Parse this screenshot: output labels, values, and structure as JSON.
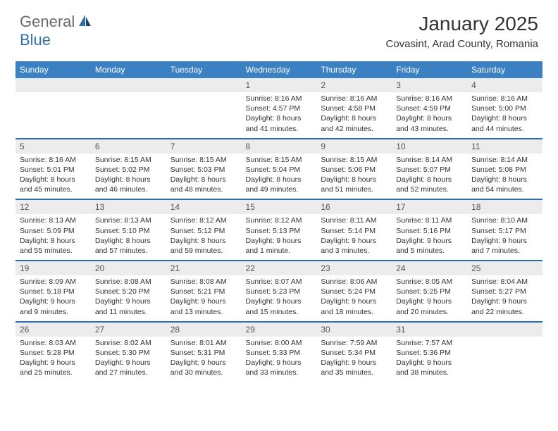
{
  "logo": {
    "general": "General",
    "blue": "Blue"
  },
  "title": "January 2025",
  "location": "Covasint, Arad County, Romania",
  "colors": {
    "header_bg": "#3a80c3",
    "header_text": "#ffffff",
    "row_sep": "#2f6fa8",
    "daynum_bg": "#ececec",
    "body_text": "#333333",
    "logo_gray": "#6a6a6a",
    "logo_blue": "#2f6fa8"
  },
  "fonts": {
    "title_pt": 28,
    "location_pt": 15,
    "dow_pt": 12,
    "daynum_pt": 12,
    "detail_pt": 10.5
  },
  "days_of_week": [
    "Sunday",
    "Monday",
    "Tuesday",
    "Wednesday",
    "Thursday",
    "Friday",
    "Saturday"
  ],
  "weeks": [
    [
      {
        "n": "",
        "sr": "",
        "ss": "",
        "d1": "",
        "d2": ""
      },
      {
        "n": "",
        "sr": "",
        "ss": "",
        "d1": "",
        "d2": ""
      },
      {
        "n": "",
        "sr": "",
        "ss": "",
        "d1": "",
        "d2": ""
      },
      {
        "n": "1",
        "sr": "Sunrise: 8:16 AM",
        "ss": "Sunset: 4:57 PM",
        "d1": "Daylight: 8 hours",
        "d2": "and 41 minutes."
      },
      {
        "n": "2",
        "sr": "Sunrise: 8:16 AM",
        "ss": "Sunset: 4:58 PM",
        "d1": "Daylight: 8 hours",
        "d2": "and 42 minutes."
      },
      {
        "n": "3",
        "sr": "Sunrise: 8:16 AM",
        "ss": "Sunset: 4:59 PM",
        "d1": "Daylight: 8 hours",
        "d2": "and 43 minutes."
      },
      {
        "n": "4",
        "sr": "Sunrise: 8:16 AM",
        "ss": "Sunset: 5:00 PM",
        "d1": "Daylight: 8 hours",
        "d2": "and 44 minutes."
      }
    ],
    [
      {
        "n": "5",
        "sr": "Sunrise: 8:16 AM",
        "ss": "Sunset: 5:01 PM",
        "d1": "Daylight: 8 hours",
        "d2": "and 45 minutes."
      },
      {
        "n": "6",
        "sr": "Sunrise: 8:15 AM",
        "ss": "Sunset: 5:02 PM",
        "d1": "Daylight: 8 hours",
        "d2": "and 46 minutes."
      },
      {
        "n": "7",
        "sr": "Sunrise: 8:15 AM",
        "ss": "Sunset: 5:03 PM",
        "d1": "Daylight: 8 hours",
        "d2": "and 48 minutes."
      },
      {
        "n": "8",
        "sr": "Sunrise: 8:15 AM",
        "ss": "Sunset: 5:04 PM",
        "d1": "Daylight: 8 hours",
        "d2": "and 49 minutes."
      },
      {
        "n": "9",
        "sr": "Sunrise: 8:15 AM",
        "ss": "Sunset: 5:06 PM",
        "d1": "Daylight: 8 hours",
        "d2": "and 51 minutes."
      },
      {
        "n": "10",
        "sr": "Sunrise: 8:14 AM",
        "ss": "Sunset: 5:07 PM",
        "d1": "Daylight: 8 hours",
        "d2": "and 52 minutes."
      },
      {
        "n": "11",
        "sr": "Sunrise: 8:14 AM",
        "ss": "Sunset: 5:08 PM",
        "d1": "Daylight: 8 hours",
        "d2": "and 54 minutes."
      }
    ],
    [
      {
        "n": "12",
        "sr": "Sunrise: 8:13 AM",
        "ss": "Sunset: 5:09 PM",
        "d1": "Daylight: 8 hours",
        "d2": "and 55 minutes."
      },
      {
        "n": "13",
        "sr": "Sunrise: 8:13 AM",
        "ss": "Sunset: 5:10 PM",
        "d1": "Daylight: 8 hours",
        "d2": "and 57 minutes."
      },
      {
        "n": "14",
        "sr": "Sunrise: 8:12 AM",
        "ss": "Sunset: 5:12 PM",
        "d1": "Daylight: 8 hours",
        "d2": "and 59 minutes."
      },
      {
        "n": "15",
        "sr": "Sunrise: 8:12 AM",
        "ss": "Sunset: 5:13 PM",
        "d1": "Daylight: 9 hours",
        "d2": "and 1 minute."
      },
      {
        "n": "16",
        "sr": "Sunrise: 8:11 AM",
        "ss": "Sunset: 5:14 PM",
        "d1": "Daylight: 9 hours",
        "d2": "and 3 minutes."
      },
      {
        "n": "17",
        "sr": "Sunrise: 8:11 AM",
        "ss": "Sunset: 5:16 PM",
        "d1": "Daylight: 9 hours",
        "d2": "and 5 minutes."
      },
      {
        "n": "18",
        "sr": "Sunrise: 8:10 AM",
        "ss": "Sunset: 5:17 PM",
        "d1": "Daylight: 9 hours",
        "d2": "and 7 minutes."
      }
    ],
    [
      {
        "n": "19",
        "sr": "Sunrise: 8:09 AM",
        "ss": "Sunset: 5:18 PM",
        "d1": "Daylight: 9 hours",
        "d2": "and 9 minutes."
      },
      {
        "n": "20",
        "sr": "Sunrise: 8:08 AM",
        "ss": "Sunset: 5:20 PM",
        "d1": "Daylight: 9 hours",
        "d2": "and 11 minutes."
      },
      {
        "n": "21",
        "sr": "Sunrise: 8:08 AM",
        "ss": "Sunset: 5:21 PM",
        "d1": "Daylight: 9 hours",
        "d2": "and 13 minutes."
      },
      {
        "n": "22",
        "sr": "Sunrise: 8:07 AM",
        "ss": "Sunset: 5:23 PM",
        "d1": "Daylight: 9 hours",
        "d2": "and 15 minutes."
      },
      {
        "n": "23",
        "sr": "Sunrise: 8:06 AM",
        "ss": "Sunset: 5:24 PM",
        "d1": "Daylight: 9 hours",
        "d2": "and 18 minutes."
      },
      {
        "n": "24",
        "sr": "Sunrise: 8:05 AM",
        "ss": "Sunset: 5:25 PM",
        "d1": "Daylight: 9 hours",
        "d2": "and 20 minutes."
      },
      {
        "n": "25",
        "sr": "Sunrise: 8:04 AM",
        "ss": "Sunset: 5:27 PM",
        "d1": "Daylight: 9 hours",
        "d2": "and 22 minutes."
      }
    ],
    [
      {
        "n": "26",
        "sr": "Sunrise: 8:03 AM",
        "ss": "Sunset: 5:28 PM",
        "d1": "Daylight: 9 hours",
        "d2": "and 25 minutes."
      },
      {
        "n": "27",
        "sr": "Sunrise: 8:02 AM",
        "ss": "Sunset: 5:30 PM",
        "d1": "Daylight: 9 hours",
        "d2": "and 27 minutes."
      },
      {
        "n": "28",
        "sr": "Sunrise: 8:01 AM",
        "ss": "Sunset: 5:31 PM",
        "d1": "Daylight: 9 hours",
        "d2": "and 30 minutes."
      },
      {
        "n": "29",
        "sr": "Sunrise: 8:00 AM",
        "ss": "Sunset: 5:33 PM",
        "d1": "Daylight: 9 hours",
        "d2": "and 33 minutes."
      },
      {
        "n": "30",
        "sr": "Sunrise: 7:59 AM",
        "ss": "Sunset: 5:34 PM",
        "d1": "Daylight: 9 hours",
        "d2": "and 35 minutes."
      },
      {
        "n": "31",
        "sr": "Sunrise: 7:57 AM",
        "ss": "Sunset: 5:36 PM",
        "d1": "Daylight: 9 hours",
        "d2": "and 38 minutes."
      },
      {
        "n": "",
        "sr": "",
        "ss": "",
        "d1": "",
        "d2": ""
      }
    ]
  ]
}
